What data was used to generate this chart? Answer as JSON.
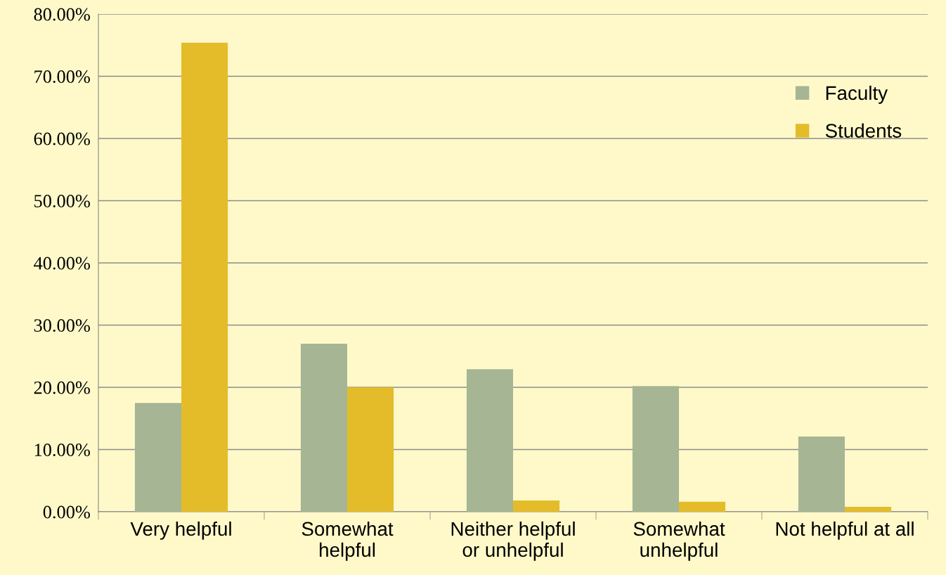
{
  "chart_data": {
    "type": "bar",
    "categories": [
      "Very helpful",
      "Somewhat\nhelpful",
      "Neither helpful\nor unhelpful",
      "Somewhat\nunhelpful",
      "Not helpful at all"
    ],
    "series": [
      {
        "name": "Faculty",
        "color": "#a6b594",
        "values": [
          17.5,
          27.0,
          22.9,
          20.2,
          12.1
        ]
      },
      {
        "name": "Students",
        "color": "#e4bc2a",
        "values": [
          75.4,
          20.0,
          1.8,
          1.6,
          0.8
        ]
      }
    ],
    "ylim": [
      0,
      80
    ],
    "yticks": [
      {
        "value": 0,
        "label": "0.00%"
      },
      {
        "value": 10,
        "label": "10.00%"
      },
      {
        "value": 20,
        "label": "20.00%"
      },
      {
        "value": 30,
        "label": "30.00%"
      },
      {
        "value": 40,
        "label": "40.00%"
      },
      {
        "value": 50,
        "label": "50.00%"
      },
      {
        "value": 60,
        "label": "60.00%"
      },
      {
        "value": 70,
        "label": "70.00%"
      },
      {
        "value": 80,
        "label": "80.00%"
      }
    ],
    "grid": "y",
    "legend": "right"
  }
}
